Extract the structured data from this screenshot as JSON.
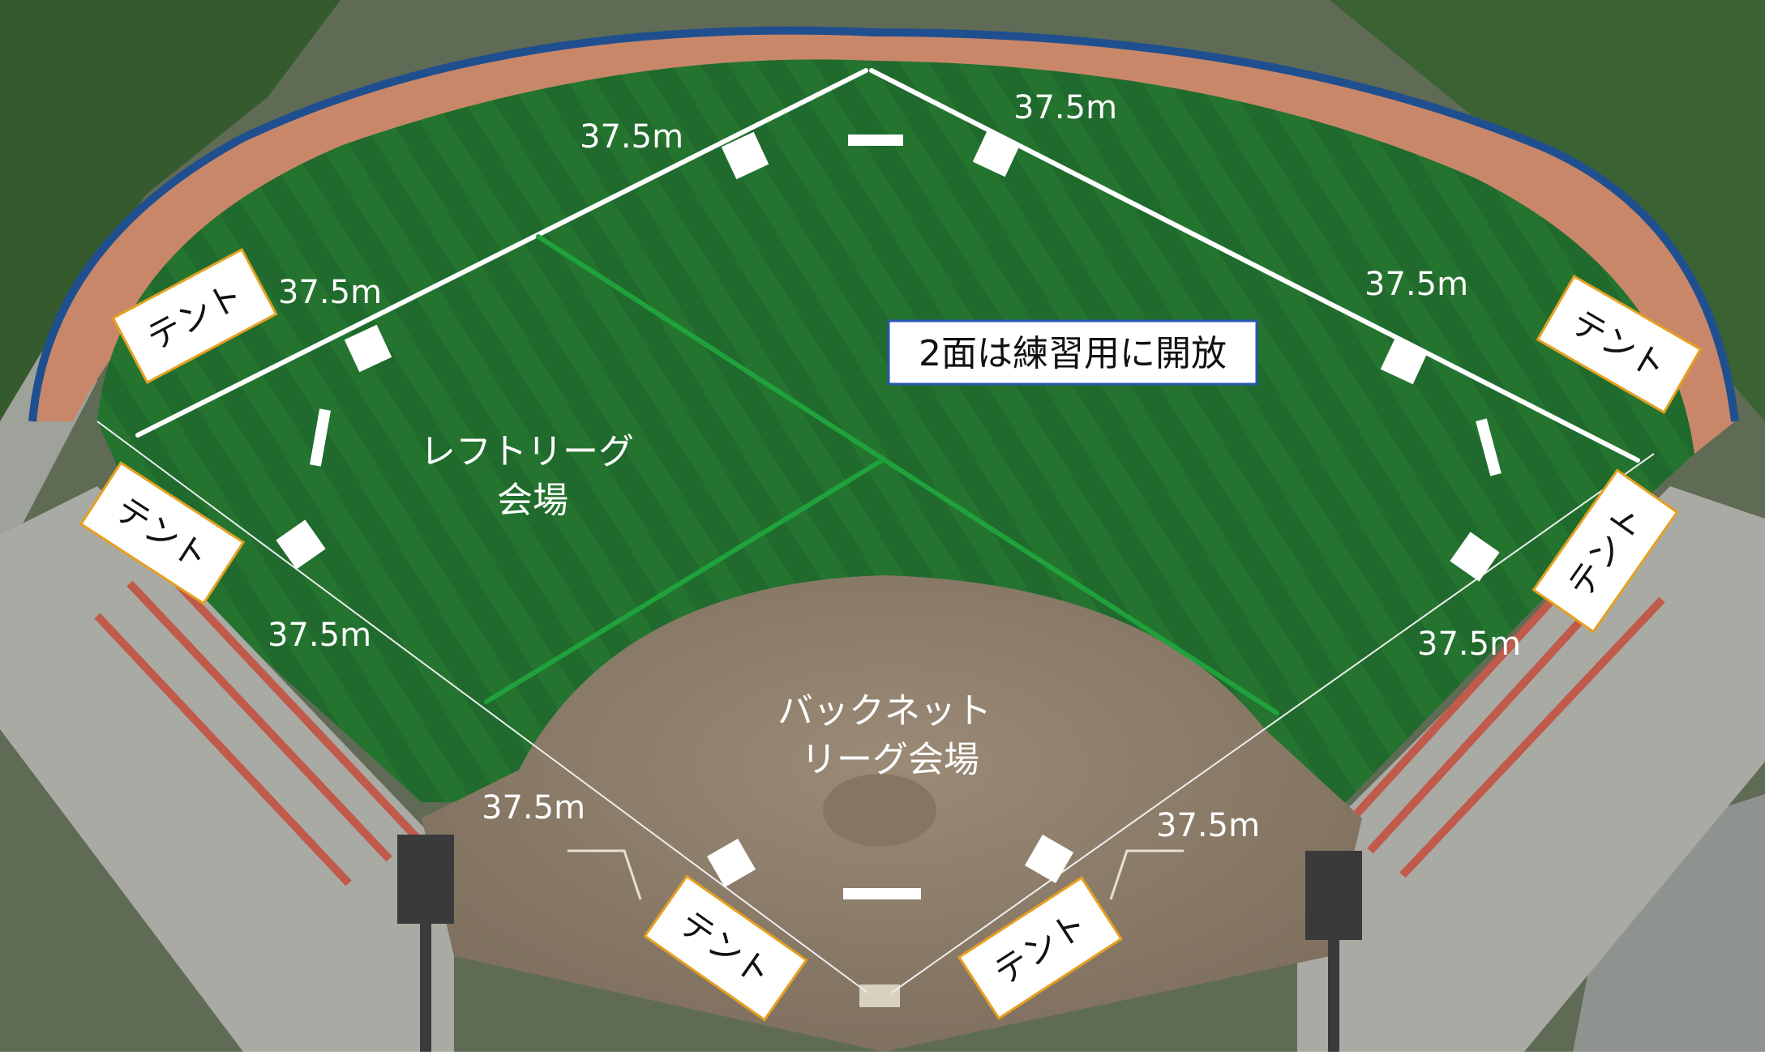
{
  "labels": {
    "practice_notice": "2面は練習用に開放",
    "left_league_venue": [
      "レフトリーグ",
      "会場"
    ],
    "backnet_league_venue": [
      "バックネット",
      "リーグ会場"
    ],
    "tent": "テント",
    "distance": "37.5m"
  },
  "colors": {
    "grass": "#1f6a2c",
    "warning_track": "#c9876a",
    "infield_dirt": "#8f7f6c",
    "boundary_lines": "#ffffff",
    "division_lines": "#1fa23c",
    "tent_border": "#e6a020",
    "notice_border": "#2a56b0"
  }
}
